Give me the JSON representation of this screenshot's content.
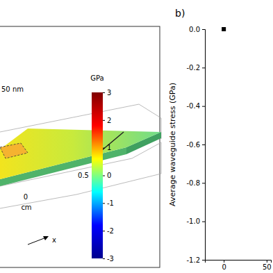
{
  "chart_data": [
    {
      "type": "surface",
      "color_bar": {
        "title": "GPa",
        "range": [
          -3,
          3
        ],
        "ticks": [
          3,
          2,
          1,
          0,
          -1,
          -2,
          -3
        ]
      },
      "annotations": [
        "50 nm",
        "0.5",
        "0",
        "cm",
        "x"
      ]
    },
    {
      "type": "scatter",
      "title": "b)",
      "y_label": "Average waveguide stress (GPa)",
      "x": [
        0
      ],
      "values": [
        0.0
      ],
      "color": "#000000",
      "marker": "square",
      "xlim": [
        -22,
        55
      ],
      "xticks": [
        0,
        50
      ],
      "ylim": [
        -1.2,
        0
      ],
      "yticks": [
        {
          "value": 0,
          "label": "0.0"
        },
        {
          "value": -0.2,
          "label": "-0.2"
        },
        {
          "value": -0.4,
          "label": "-0.4"
        },
        {
          "value": -0.6,
          "label": "-0.6"
        },
        {
          "value": -0.8,
          "label": "-0.8"
        },
        {
          "value": -1.0,
          "label": "-1.0"
        },
        {
          "value": -1.2,
          "label": "-1.2"
        }
      ]
    }
  ]
}
